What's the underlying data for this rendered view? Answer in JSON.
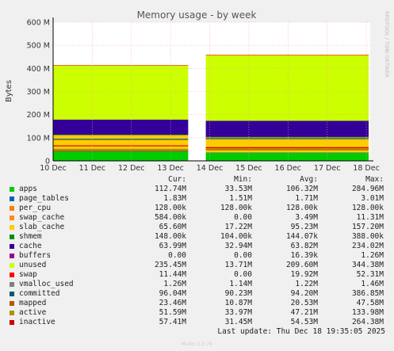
{
  "chart_data": {
    "type": "area",
    "title": "Memory usage - by week",
    "ylabel": "Bytes",
    "side_text": "RRDTOOL / TOBI OETIKER",
    "x_ticks": [
      "10 Dec",
      "11 Dec",
      "12 Dec",
      "13 Dec",
      "14 Dec",
      "15 Dec",
      "16 Dec",
      "17 Dec",
      "18 Dec"
    ],
    "y_ticks": [
      "0",
      "100 M",
      "200 M",
      "300 M",
      "400 M",
      "500 M",
      "600 M"
    ],
    "ylim": [
      0,
      600
    ],
    "y_unit": "M",
    "grid": true,
    "stack_profile": [
      {
        "series": "apps",
        "before": 45,
        "after": 35
      },
      {
        "series": "page_tables",
        "before": 2,
        "after": 2
      },
      {
        "series": "swap_cache",
        "before": 1,
        "after": 1
      },
      {
        "series": "slab_cache",
        "before": 65,
        "after": 65
      },
      {
        "series": "shmem",
        "before": 0.2,
        "after": 0.2
      },
      {
        "series": "cache",
        "before": 65,
        "after": 70
      },
      {
        "series": "unused",
        "before": 235,
        "after": 285
      },
      {
        "series": "swap",
        "before": 1,
        "after": 1
      }
    ],
    "lines_profile": [
      {
        "series": "committed",
        "before": 93,
        "after": 96
      },
      {
        "series": "mapped",
        "before": 42,
        "after": 48
      },
      {
        "series": "active",
        "before": 50,
        "after": 52
      },
      {
        "series": "inactive",
        "before": 65,
        "after": 57
      }
    ],
    "gap": [
      "13 Dec",
      "14 Dec"
    ],
    "legend_headers": [
      "Cur:",
      "Min:",
      "Avg:",
      "Max:"
    ],
    "series": [
      {
        "name": "apps",
        "color": "#00cc00",
        "cur": "112.74M",
        "min": "33.53M",
        "avg": "106.32M",
        "max": "284.96M"
      },
      {
        "name": "page_tables",
        "color": "#0066b3",
        "cur": "1.83M",
        "min": "1.51M",
        "avg": "1.71M",
        "max": "3.01M"
      },
      {
        "name": "per_cpu",
        "color": "#ff8000",
        "cur": "128.00k",
        "min": "128.00k",
        "avg": "128.00k",
        "max": "128.00k"
      },
      {
        "name": "swap_cache",
        "color": "#ff8c1a",
        "cur": "584.00k",
        "min": "0.00",
        "avg": "3.49M",
        "max": "11.31M"
      },
      {
        "name": "slab_cache",
        "color": "#ffcc00",
        "cur": "65.60M",
        "min": "17.22M",
        "avg": "95.23M",
        "max": "157.20M"
      },
      {
        "name": "shmem",
        "color": "#008f00",
        "cur": "148.00k",
        "min": "104.00k",
        "avg": "144.07k",
        "max": "388.00k"
      },
      {
        "name": "cache",
        "color": "#330099",
        "cur": "63.99M",
        "min": "32.94M",
        "avg": "63.82M",
        "max": "234.02M"
      },
      {
        "name": "buffers",
        "color": "#990099",
        "cur": "0.00",
        "min": "0.00",
        "avg": "16.39k",
        "max": "1.26M"
      },
      {
        "name": "unused",
        "color": "#ccff00",
        "cur": "235.45M",
        "min": "13.71M",
        "avg": "209.60M",
        "max": "344.38M"
      },
      {
        "name": "swap",
        "color": "#ff0000",
        "cur": "11.44M",
        "min": "0.00",
        "avg": "19.92M",
        "max": "52.31M"
      },
      {
        "name": "vmalloc_used",
        "color": "#808080",
        "cur": "1.26M",
        "min": "1.14M",
        "avg": "1.22M",
        "max": "1.46M"
      },
      {
        "name": "committed",
        "color": "#005a73",
        "cur": "96.04M",
        "min": "90.23M",
        "avg": "94.20M",
        "max": "386.85M"
      },
      {
        "name": "mapped",
        "color": "#b35a00",
        "cur": "23.46M",
        "min": "10.87M",
        "avg": "20.53M",
        "max": "47.58M"
      },
      {
        "name": "active",
        "color": "#b38f00",
        "cur": "51.59M",
        "min": "33.97M",
        "avg": "47.21M",
        "max": "133.98M"
      },
      {
        "name": "inactive",
        "color": "#cc0000",
        "cur": "57.41M",
        "min": "31.45M",
        "avg": "54.53M",
        "max": "264.38M"
      }
    ],
    "last_update": "Last update: Thu Dec 18 19:35:05 2025",
    "footer": "Munin 2.0.76"
  }
}
